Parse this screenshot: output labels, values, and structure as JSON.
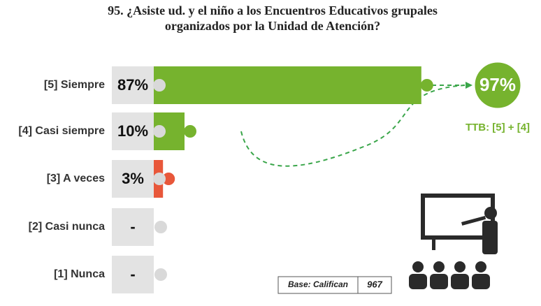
{
  "chart_data": {
    "type": "bar",
    "title": "95. ¿Asiste ud. y el niño a los Encuentros Educativos grupales organizados por la Unidad de Atención?",
    "categories": [
      "[5] Siempre",
      "[4] Casi siempre",
      "[3] A veces",
      "[2] Casi nunca",
      "[1] Nunca"
    ],
    "values": [
      87,
      10,
      3,
      null,
      null
    ],
    "value_labels": [
      "87%",
      "10%",
      "3%",
      "-",
      "-"
    ],
    "colors": [
      "#76b32e",
      "#76b32e",
      "#e8573a",
      "#d9d9d9",
      "#d9d9d9"
    ],
    "xlim": [
      0,
      100
    ],
    "ttb": {
      "value": 97,
      "value_label": "97%",
      "label": "TTB: [5] + [4]",
      "color": "#76b32e"
    },
    "base": {
      "label": "Base: Califican",
      "value": 967
    }
  }
}
